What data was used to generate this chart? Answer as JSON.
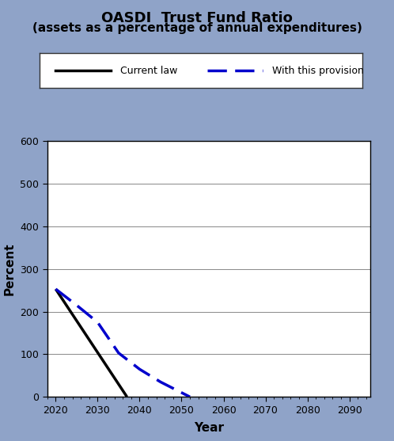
{
  "title": "OASDI  Trust Fund Ratio",
  "subtitle": "(assets as a percentage of annual expenditures)",
  "xlabel": "Year",
  "ylabel": "Percent",
  "xlim": [
    2018,
    2095
  ],
  "ylim": [
    0,
    600
  ],
  "xticks": [
    2020,
    2030,
    2040,
    2050,
    2060,
    2070,
    2080,
    2090
  ],
  "yticks": [
    0,
    100,
    200,
    300,
    400,
    500,
    600
  ],
  "background_color": "#8fa3c8",
  "plot_bg_color": "#ffffff",
  "current_law": {
    "x": [
      2020,
      2037
    ],
    "y": [
      253,
      0
    ],
    "color": "#000000",
    "linewidth": 2.5,
    "label": "Current law"
  },
  "provision": {
    "x": [
      2020,
      2025,
      2030,
      2035,
      2040,
      2045,
      2050,
      2052
    ],
    "y": [
      253,
      215,
      175,
      103,
      65,
      35,
      10,
      0
    ],
    "color": "#0000cc",
    "linewidth": 2.5,
    "label": "With this provision"
  },
  "legend_box_color": "#ffffff",
  "title_fontsize": 13,
  "subtitle_fontsize": 11,
  "axis_label_fontsize": 11,
  "tick_fontsize": 9
}
